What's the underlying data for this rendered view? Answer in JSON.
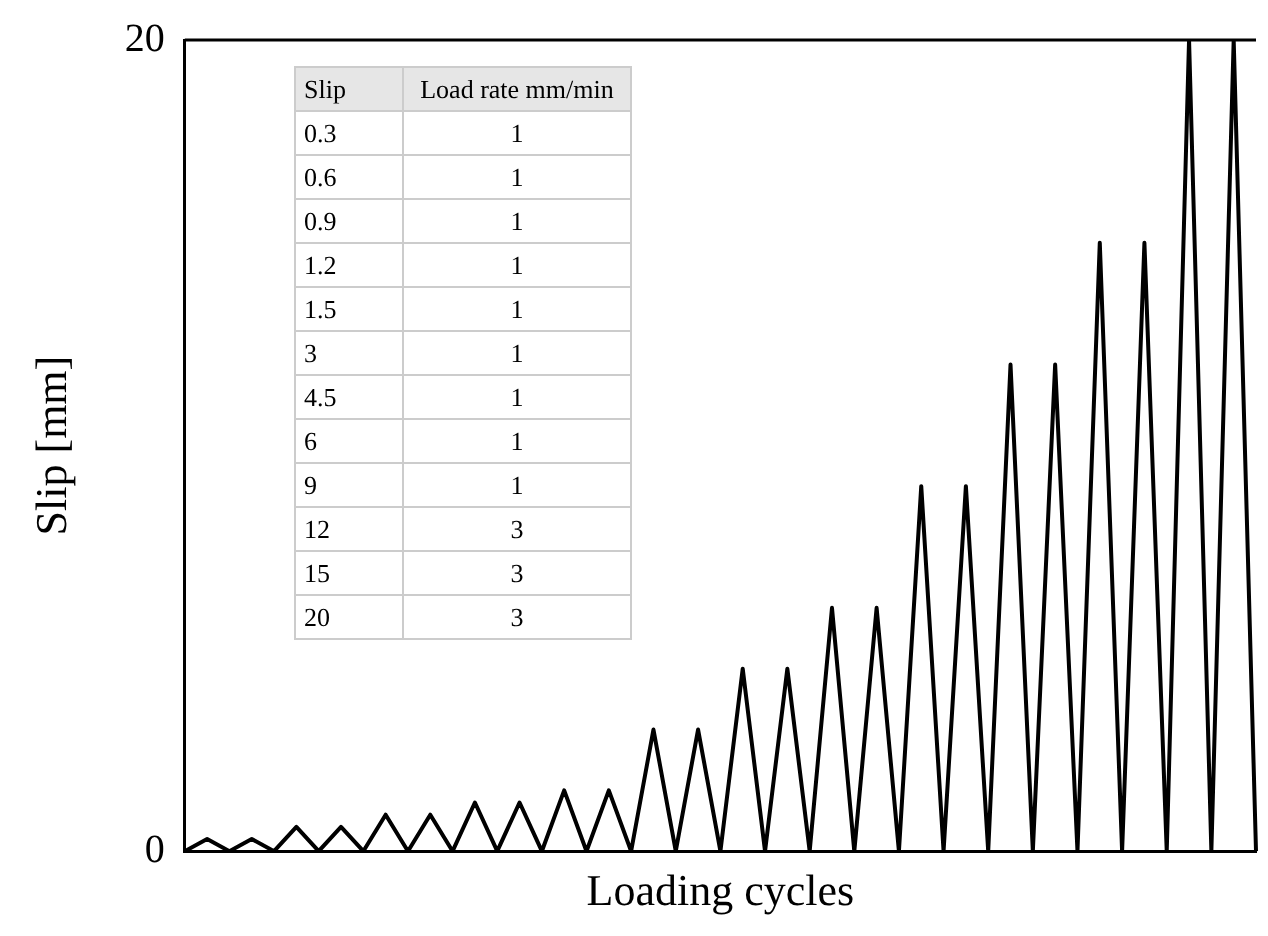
{
  "chart_data": {
    "type": "line",
    "xlabel": "Loading cycles",
    "ylabel": "Slip [mm]",
    "categories": [
      null,
      null,
      null,
      null,
      null,
      null,
      null,
      null,
      null,
      null,
      null,
      null,
      null,
      null,
      null,
      null,
      null,
      null,
      null,
      null,
      null,
      null,
      null,
      null,
      null,
      null,
      null,
      null,
      null,
      null,
      null,
      null,
      null,
      null,
      null,
      null,
      null,
      null,
      null,
      null,
      null,
      null,
      null,
      null,
      null,
      null,
      null,
      null,
      null
    ],
    "series": [
      {
        "color": "#000000",
        "values": [
          0,
          0.3,
          0,
          0.3,
          0,
          0.6,
          0,
          0.6,
          0,
          0.9,
          0,
          0.9,
          0,
          1.2,
          0,
          1.2,
          0,
          1.5,
          0,
          1.5,
          0,
          3,
          0,
          3,
          0,
          4.5,
          0,
          4.5,
          0,
          6,
          0,
          6,
          0,
          9,
          0,
          9,
          0,
          12,
          0,
          12,
          0,
          15,
          0,
          15,
          0,
          20,
          0,
          20,
          0
        ]
      }
    ],
    "ylim": [
      0,
      20
    ],
    "yticks": [
      0,
      20
    ],
    "grid": false,
    "legend": false,
    "marker": "none",
    "line_style": "solid",
    "annotations": [
      "Slip",
      "Load rate mm/min",
      "0.3",
      "1",
      "0.6",
      "1",
      "0.9",
      "1",
      "1.2",
      "1",
      "1.5",
      "1",
      "3",
      "1",
      "4.5",
      "1",
      "6",
      "1",
      "9",
      "1",
      "12",
      "3",
      "15",
      "3",
      "20",
      "3"
    ]
  }
}
